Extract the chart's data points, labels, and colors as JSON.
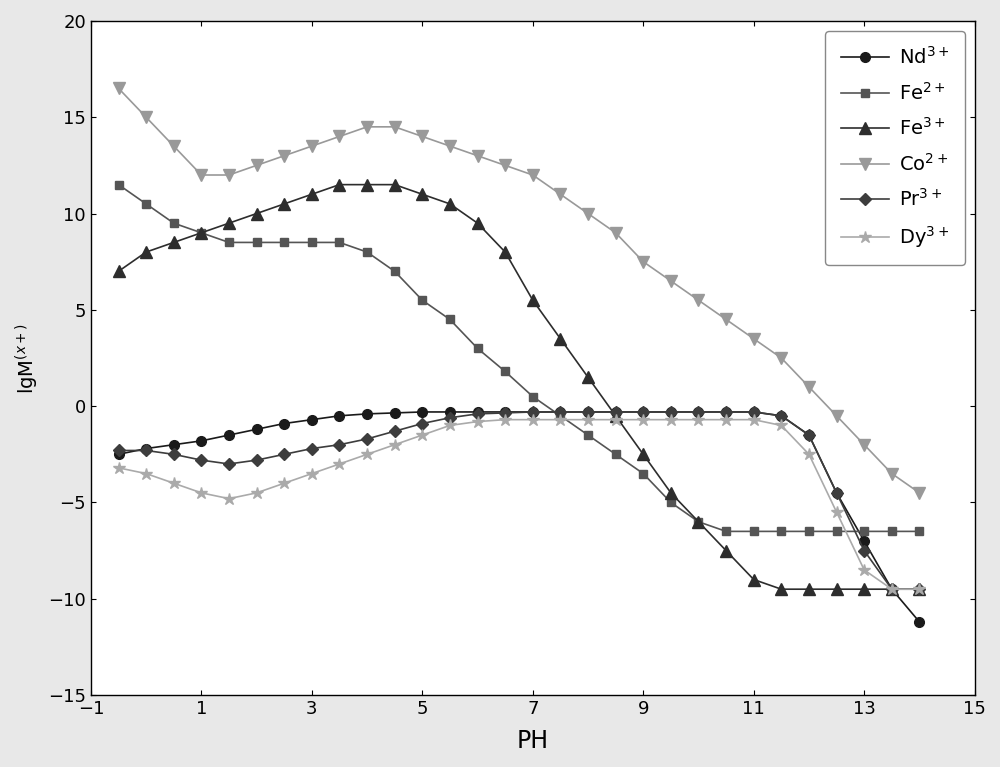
{
  "Nd3+": {
    "color": "#1a1a1a",
    "marker": "o",
    "markersize": 7,
    "linewidth": 1.2,
    "x": [
      -0.5,
      0,
      0.5,
      1,
      1.5,
      2,
      2.5,
      3,
      3.5,
      4,
      4.5,
      5,
      5.5,
      6,
      6.5,
      7,
      7.5,
      8,
      8.5,
      9,
      9.5,
      10,
      10.5,
      11,
      11.5,
      12,
      12.5,
      13,
      13.5,
      14
    ],
    "y": [
      -2.5,
      -2.2,
      -2.0,
      -1.8,
      -1.5,
      -1.2,
      -0.9,
      -0.7,
      -0.5,
      -0.4,
      -0.35,
      -0.3,
      -0.3,
      -0.3,
      -0.3,
      -0.3,
      -0.3,
      -0.3,
      -0.3,
      -0.3,
      -0.3,
      -0.3,
      -0.3,
      -0.3,
      -0.5,
      -1.5,
      -4.5,
      -7.0,
      -9.5,
      -11.2
    ]
  },
  "Fe2+": {
    "color": "#555555",
    "marker": "s",
    "markersize": 6,
    "linewidth": 1.2,
    "x": [
      -0.5,
      0,
      0.5,
      1,
      1.5,
      2,
      2.5,
      3,
      3.5,
      4,
      4.5,
      5,
      5.5,
      6,
      6.5,
      7,
      7.5,
      8,
      8.5,
      9,
      9.5,
      10,
      10.5,
      11,
      11.5,
      12,
      12.5,
      13,
      13.5,
      14
    ],
    "y": [
      11.5,
      10.5,
      9.5,
      9.0,
      8.5,
      8.5,
      8.5,
      8.5,
      8.5,
      8.0,
      7.0,
      5.5,
      4.5,
      3.0,
      1.8,
      0.5,
      -0.5,
      -1.5,
      -2.5,
      -3.5,
      -5.0,
      -6.0,
      -6.5,
      -6.5,
      -6.5,
      -6.5,
      -6.5,
      -6.5,
      -6.5,
      -6.5
    ]
  },
  "Fe3+": {
    "color": "#2d2d2d",
    "marker": "^",
    "markersize": 8,
    "linewidth": 1.2,
    "x": [
      -0.5,
      0,
      0.5,
      1,
      1.5,
      2,
      2.5,
      3,
      3.5,
      4,
      4.5,
      5,
      5.5,
      6,
      6.5,
      7,
      7.5,
      8,
      8.5,
      9,
      9.5,
      10,
      10.5,
      11,
      11.5,
      12,
      12.5,
      13,
      13.5,
      14
    ],
    "y": [
      7.0,
      8.0,
      8.5,
      9.0,
      9.5,
      10.0,
      10.5,
      11.0,
      11.5,
      11.5,
      11.5,
      11.0,
      10.5,
      9.5,
      8.0,
      5.5,
      3.5,
      1.5,
      -0.5,
      -2.5,
      -4.5,
      -6.0,
      -7.5,
      -9.0,
      -9.5,
      -9.5,
      -9.5,
      -9.5,
      -9.5,
      -9.5
    ]
  },
  "Co2+": {
    "color": "#999999",
    "marker": "v",
    "markersize": 8,
    "linewidth": 1.2,
    "x": [
      -0.5,
      0,
      0.5,
      1,
      1.5,
      2,
      2.5,
      3,
      3.5,
      4,
      4.5,
      5,
      5.5,
      6,
      6.5,
      7,
      7.5,
      8,
      8.5,
      9,
      9.5,
      10,
      10.5,
      11,
      11.5,
      12,
      12.5,
      13,
      13.5,
      14
    ],
    "y": [
      16.5,
      15.0,
      13.5,
      12.0,
      12.0,
      12.5,
      13.0,
      13.5,
      14.0,
      14.5,
      14.5,
      14.0,
      13.5,
      13.0,
      12.5,
      12.0,
      11.0,
      10.0,
      9.0,
      7.5,
      6.5,
      5.5,
      4.5,
      3.5,
      2.5,
      1.0,
      -0.5,
      -2.0,
      -3.5,
      -4.5
    ]
  },
  "Pr3+": {
    "color": "#3d3d3d",
    "marker": "D",
    "markersize": 6,
    "linewidth": 1.2,
    "x": [
      -0.5,
      0,
      0.5,
      1,
      1.5,
      2,
      2.5,
      3,
      3.5,
      4,
      4.5,
      5,
      5.5,
      6,
      6.5,
      7,
      7.5,
      8,
      8.5,
      9,
      9.5,
      10,
      10.5,
      11,
      11.5,
      12,
      12.5,
      13,
      13.5,
      14
    ],
    "y": [
      -2.3,
      -2.3,
      -2.5,
      -2.8,
      -3.0,
      -2.8,
      -2.5,
      -2.2,
      -2.0,
      -1.7,
      -1.3,
      -0.9,
      -0.6,
      -0.4,
      -0.35,
      -0.3,
      -0.3,
      -0.3,
      -0.3,
      -0.3,
      -0.3,
      -0.3,
      -0.3,
      -0.3,
      -0.5,
      -1.5,
      -4.5,
      -7.5,
      -9.5,
      -9.5
    ]
  },
  "Dy3+": {
    "color": "#aaaaaa",
    "marker": "*",
    "markersize": 9,
    "linewidth": 1.2,
    "x": [
      -0.5,
      0,
      0.5,
      1,
      1.5,
      2,
      2.5,
      3,
      3.5,
      4,
      4.5,
      5,
      5.5,
      6,
      6.5,
      7,
      7.5,
      8,
      8.5,
      9,
      9.5,
      10,
      10.5,
      11,
      11.5,
      12,
      12.5,
      13,
      13.5,
      14
    ],
    "y": [
      -3.2,
      -3.5,
      -4.0,
      -4.5,
      -4.8,
      -4.5,
      -4.0,
      -3.5,
      -3.0,
      -2.5,
      -2.0,
      -1.5,
      -1.0,
      -0.8,
      -0.7,
      -0.7,
      -0.7,
      -0.7,
      -0.7,
      -0.7,
      -0.7,
      -0.7,
      -0.7,
      -0.7,
      -1.0,
      -2.5,
      -5.5,
      -8.5,
      -9.5,
      -9.5
    ]
  },
  "xlim": [
    -1,
    15
  ],
  "ylim": [
    -15,
    20
  ],
  "xlabel": "PH",
  "ylabel": "lgM$^{(x+)}$",
  "xticks": [
    -1,
    1,
    3,
    5,
    7,
    9,
    11,
    13,
    15
  ],
  "yticks": [
    -15,
    -10,
    -5,
    0,
    5,
    10,
    15,
    20
  ],
  "legend_labels": [
    "Nd$^{3+}$",
    "Fe$^{2+}$",
    "Fe$^{3+}$",
    "Co$^{2+}$",
    "Pr$^{3+}$",
    "Dy$^{3+}$"
  ],
  "bg_color": "#ffffff",
  "fig_bg_color": "#e8e8e8"
}
